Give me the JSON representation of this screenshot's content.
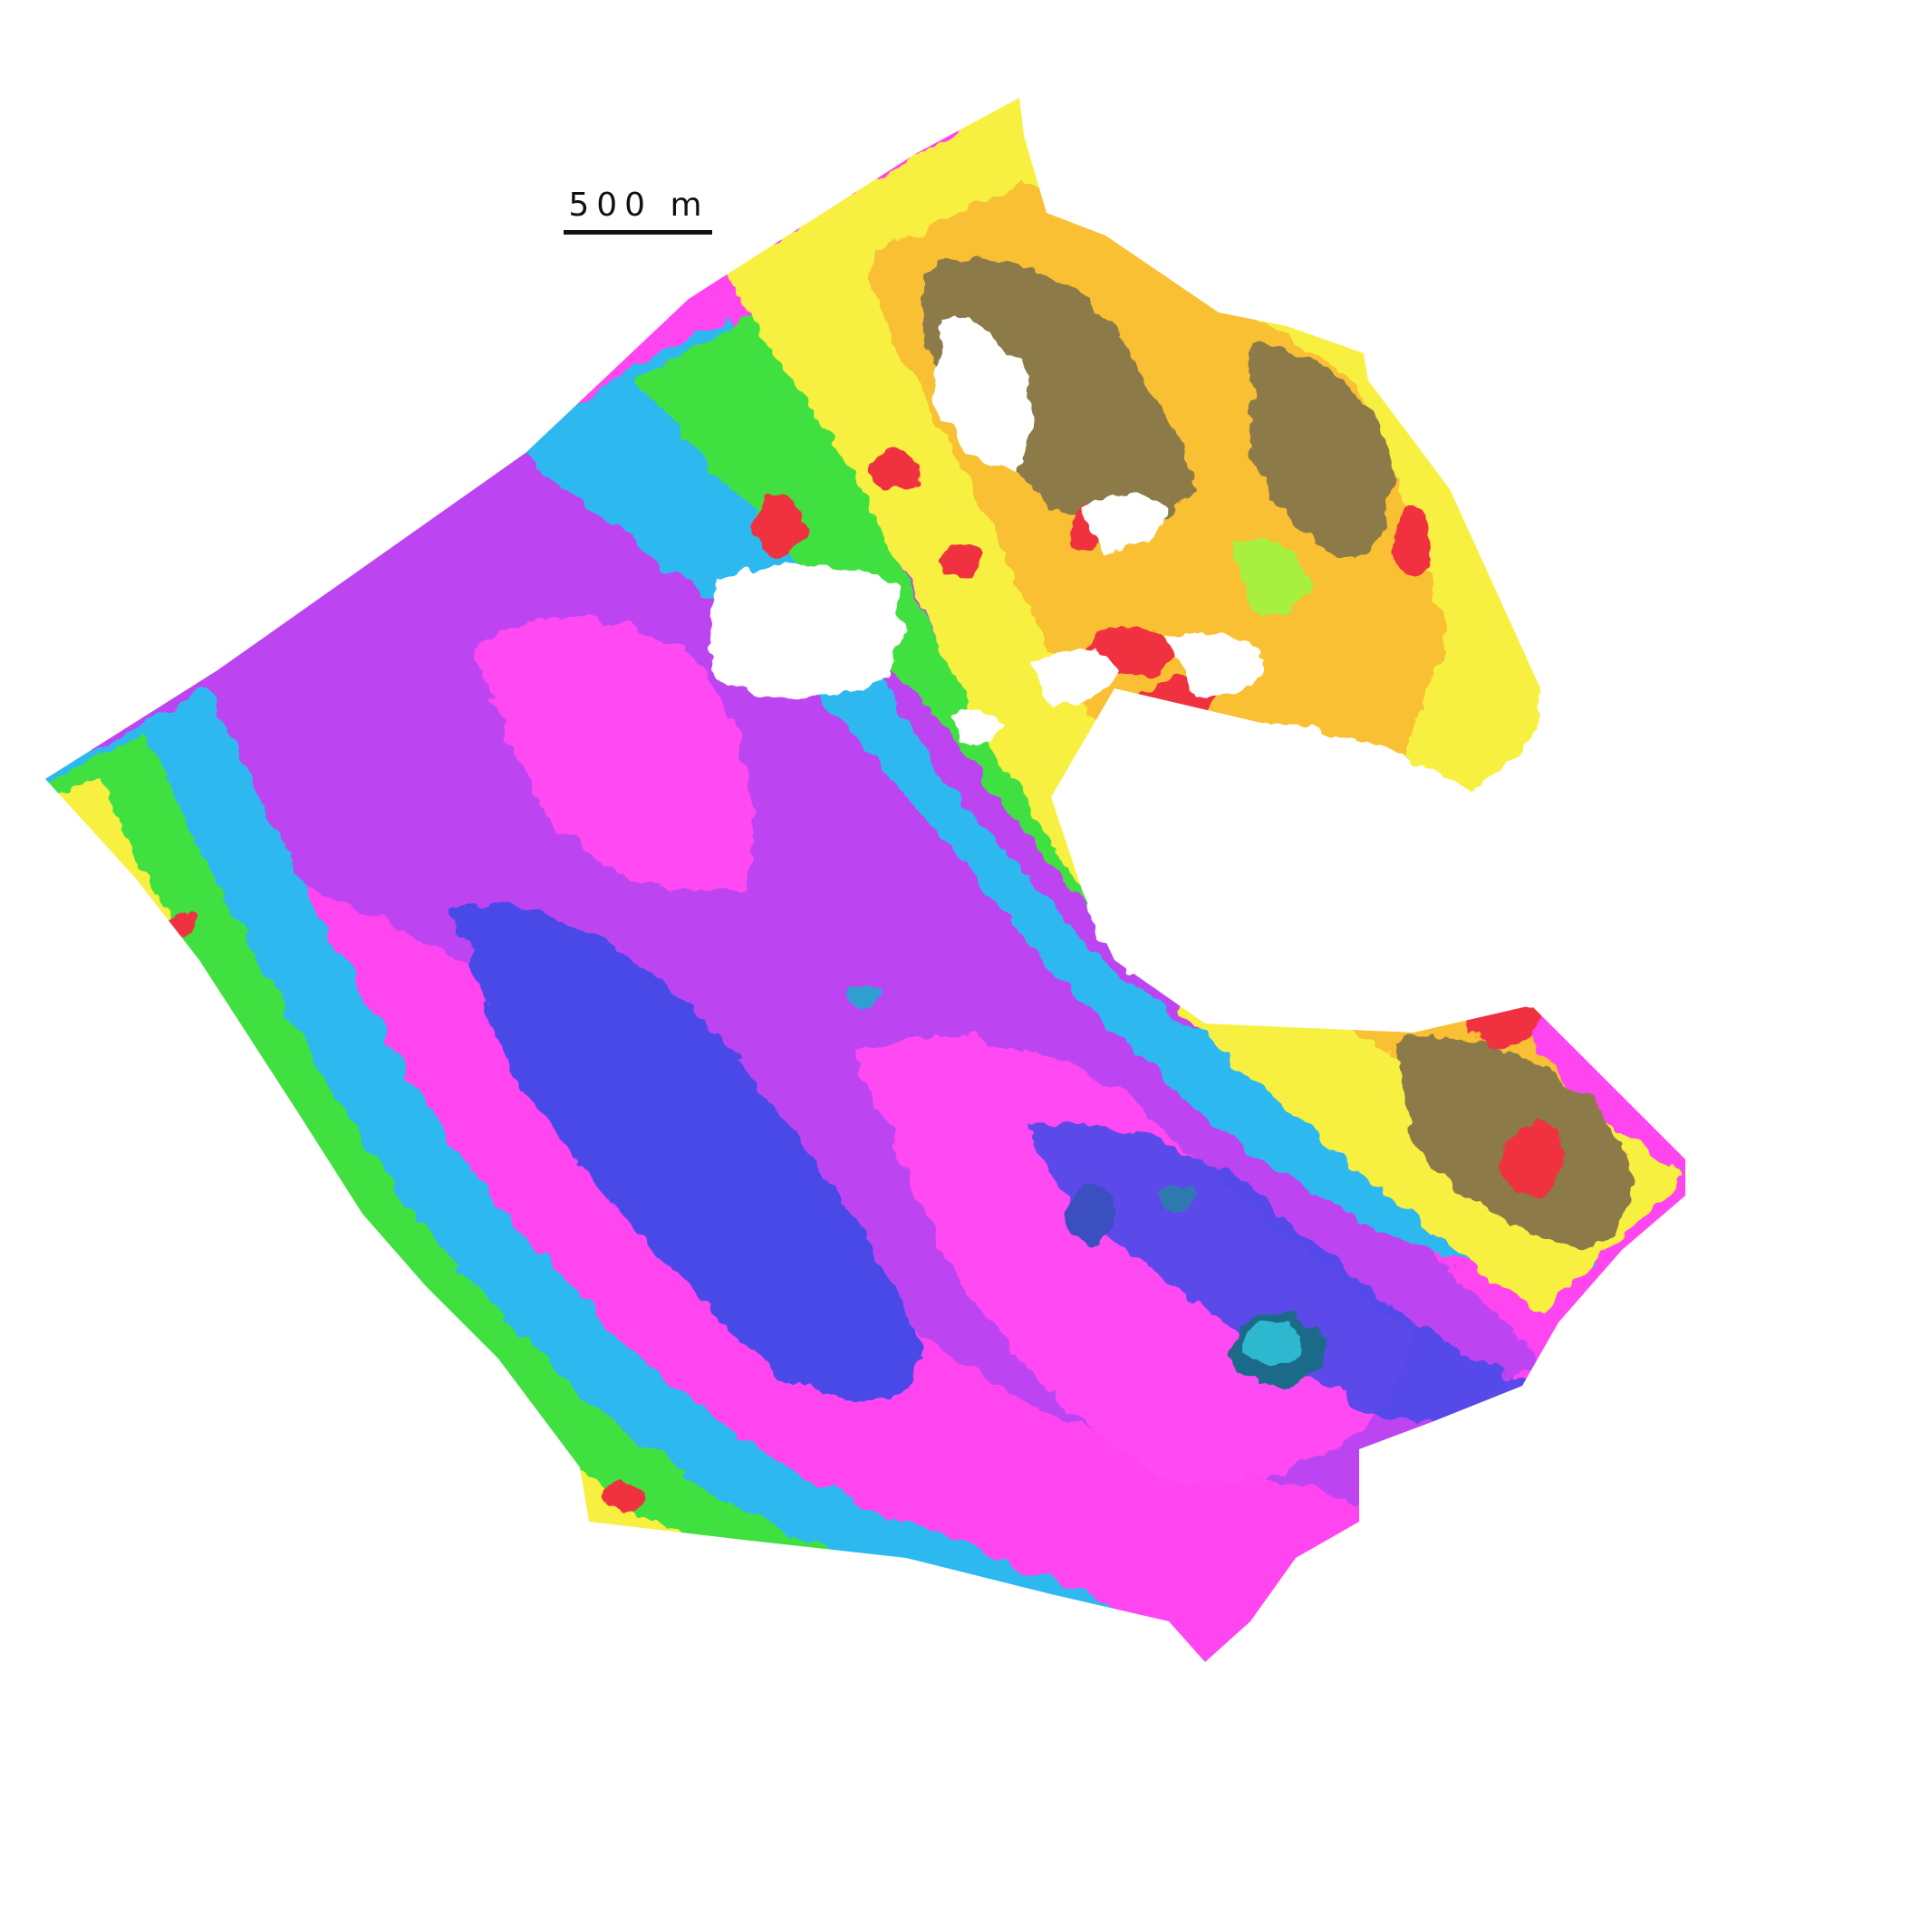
{
  "map": {
    "type": "bathymetric-relief-map",
    "color_ramp": [
      "#ff40f0",
      "#b040f0",
      "#4a4ae8",
      "#2fb8f0",
      "#30e8e0",
      "#40e040",
      "#a8f040",
      "#f8f040",
      "#f8c030",
      "#8c7a4a",
      "#f03040"
    ],
    "scale_bar": {
      "label": "500 m",
      "icon": "scale-bar-icon"
    }
  }
}
